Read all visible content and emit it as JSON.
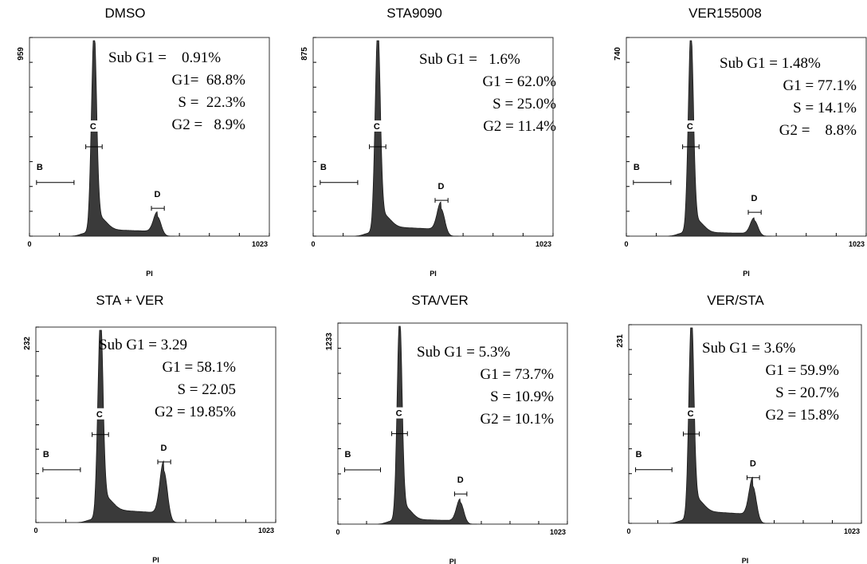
{
  "chart_data": [
    {
      "type": "area",
      "title": "DMSO",
      "xlabel": "PI",
      "x_range": [
        0,
        1023
      ],
      "ymax_label": "959",
      "gates": [
        "B",
        "C",
        "D"
      ],
      "stats": [
        "Sub G1 =    0.91%",
        "G1=  68.8%",
        "S =  22.3%",
        "G2 =   8.9%"
      ],
      "profile": {
        "g1_peak_x": 275,
        "g1_peak_y": 1.0,
        "g2_peak_x": 545,
        "g2_peak_y": 0.1,
        "s_level": 0.035
      }
    },
    {
      "type": "area",
      "title": "STA9090",
      "xlabel": "PI",
      "x_range": [
        0,
        1023
      ],
      "ymax_label": "875",
      "gates": [
        "B",
        "C",
        "D"
      ],
      "stats": [
        "Sub G1 =   1.6%",
        "G1 = 62.0%",
        "S = 25.0%",
        "G2 = 11.4%"
      ],
      "profile": {
        "g1_peak_x": 275,
        "g1_peak_y": 1.0,
        "g2_peak_x": 545,
        "g2_peak_y": 0.14,
        "s_level": 0.05
      }
    },
    {
      "type": "area",
      "title": "VER155008",
      "xlabel": "PI",
      "x_range": [
        0,
        1023
      ],
      "ymax_label": "740",
      "gates": [
        "B",
        "C",
        "D"
      ],
      "stats": [
        "Sub G1 = 1.48%",
        "G1 = 77.1%",
        "S = 14.1%",
        "G2 =    8.8%"
      ],
      "profile": {
        "g1_peak_x": 275,
        "g1_peak_y": 1.0,
        "g2_peak_x": 545,
        "g2_peak_y": 0.08,
        "s_level": 0.02
      }
    },
    {
      "type": "area",
      "title": "STA + VER",
      "xlabel": "PI",
      "x_range": [
        0,
        1023
      ],
      "ymax_label": "232",
      "gates": [
        "B",
        "C",
        "D"
      ],
      "stats": [
        "Sub G1 = 3.29",
        "G1 = 58.1%",
        "S = 22.05",
        "G2 = 19.85%"
      ],
      "profile": {
        "g1_peak_x": 275,
        "g1_peak_y": 1.0,
        "g2_peak_x": 545,
        "g2_peak_y": 0.27,
        "s_level": 0.07
      }
    },
    {
      "type": "area",
      "title": "STA/VER",
      "xlabel": "PI",
      "x_range": [
        0,
        1023
      ],
      "ymax_label": "1233",
      "gates": [
        "B",
        "C",
        "D"
      ],
      "stats": [
        "Sub G1 = 5.3%",
        "G1 = 73.7%",
        "S = 10.9%",
        "G2 = 10.1%"
      ],
      "profile": {
        "g1_peak_x": 275,
        "g1_peak_y": 1.0,
        "g2_peak_x": 545,
        "g2_peak_y": 0.11,
        "s_level": 0.025
      }
    },
    {
      "type": "area",
      "title": "VER/STA",
      "xlabel": "PI",
      "x_range": [
        0,
        1023
      ],
      "ymax_label": "231",
      "gates": [
        "B",
        "C",
        "D"
      ],
      "stats": [
        "Sub G1 = 3.6%",
        "G1 = 59.9%",
        "S = 20.7%",
        "G2 = 15.8%"
      ],
      "profile": {
        "g1_peak_x": 275,
        "g1_peak_y": 1.0,
        "g2_peak_x": 545,
        "g2_peak_y": 0.19,
        "s_level": 0.065
      }
    }
  ],
  "x_tick_labels": [
    "0",
    "1023"
  ]
}
